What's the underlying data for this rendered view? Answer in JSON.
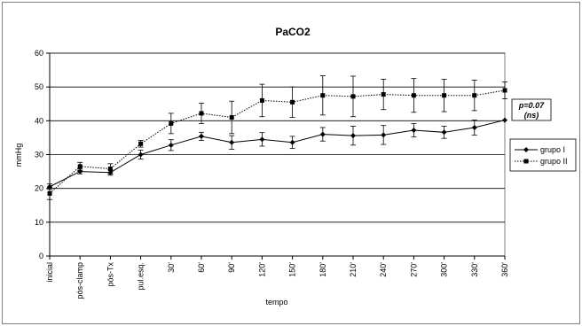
{
  "chart_data": {
    "type": "line",
    "title": "PaCO2",
    "xlabel": "tempo",
    "ylabel": "mmHg",
    "ylim": [
      0,
      60
    ],
    "yticks": [
      0,
      10,
      20,
      30,
      40,
      50,
      60
    ],
    "grid": "horizontal",
    "legend_position": "right",
    "categories": [
      "inicial",
      "pós-clamp",
      "pós-Tx",
      "pul.esq.",
      "30'",
      "60'",
      "90'",
      "120'",
      "150'",
      "180'",
      "210'",
      "240'",
      "270'",
      "300'",
      "330'",
      "360'"
    ],
    "series": [
      {
        "name": "grupo I",
        "line_style": "solid",
        "marker": "diamond",
        "values": [
          20.5,
          25.0,
          24.7,
          30.0,
          32.8,
          35.4,
          33.6,
          34.5,
          33.6,
          36.0,
          35.6,
          35.8,
          37.2,
          36.6,
          38.0,
          40.2
        ],
        "error": [
          0.8,
          0.7,
          0.8,
          1.3,
          1.6,
          1.2,
          2.0,
          2.0,
          1.8,
          2.0,
          2.8,
          2.8,
          2.0,
          1.8,
          2.2,
          0
        ]
      },
      {
        "name": "grupo II",
        "line_style": "dotted",
        "marker": "square",
        "values": [
          18.5,
          26.5,
          25.8,
          33.2,
          39.2,
          42.2,
          41.0,
          46.0,
          45.5,
          47.5,
          47.2,
          47.8,
          47.5,
          47.5,
          47.5,
          49.0
        ],
        "error": [
          1.8,
          1.2,
          1.5,
          1.0,
          3.0,
          3.0,
          4.8,
          4.8,
          4.5,
          5.8,
          6.0,
          4.5,
          5.0,
          4.8,
          4.5,
          2.5
        ]
      }
    ],
    "annotation": {
      "line1": "p=0.07",
      "line2": "(ns)"
    },
    "colors": {
      "series": "#000000",
      "grid": "#000000",
      "border": "#808080"
    }
  }
}
